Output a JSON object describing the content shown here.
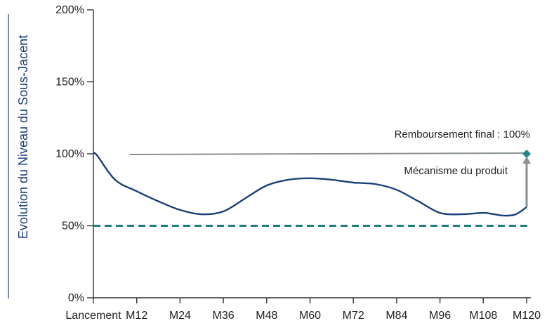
{
  "chart_data": {
    "type": "line",
    "title": "",
    "ylabel": "Evolution du Niveau du Sous-Jacent",
    "xlabel": "",
    "ylim": [
      0,
      200
    ],
    "yticks": [
      0,
      50,
      100,
      150,
      200
    ],
    "ytick_labels": [
      "0%",
      "50%",
      "100%",
      "150%",
      "200%"
    ],
    "xlim": [
      0,
      120
    ],
    "xticks": [
      0,
      12,
      24,
      36,
      48,
      60,
      72,
      84,
      96,
      108,
      120
    ],
    "xtick_labels": [
      "Lancement",
      "M12",
      "M24",
      "M36",
      "M48",
      "M60",
      "M72",
      "M84",
      "M96",
      "M108",
      "M120"
    ],
    "grid": false,
    "series": [
      {
        "x": [
          0,
          1,
          6,
          12,
          18,
          24,
          30,
          36,
          42,
          48,
          54,
          60,
          66,
          72,
          78,
          84,
          90,
          96,
          102,
          108,
          111,
          114,
          117,
          120
        ],
        "y": [
          100,
          99,
          82,
          74,
          67,
          61,
          58,
          60,
          69,
          78,
          82,
          83,
          82,
          80,
          79,
          75,
          67,
          59,
          58,
          59,
          58,
          57,
          58,
          63
        ]
      }
    ],
    "barrier": {
      "value": 50
    },
    "final_level": {
      "x": [
        10,
        120
      ],
      "value": 100
    },
    "final_point": {
      "x": 120,
      "y": 100
    },
    "arrow": {
      "x": 120,
      "from": 63,
      "to": 100
    },
    "annotations": {
      "final": "Remboursement final : 100%",
      "mechanism": "Mécanisme du produit"
    },
    "colors": {
      "line": "#1b3f7a",
      "barrier": "#1f7f80",
      "reference": "#8a9195",
      "arrow": "#8a9195",
      "marker": "#1f8a8a",
      "axis": "#333333",
      "ylabel": "#1b3f7a",
      "ylabel_rule": "#1b3f7a",
      "text": "#222222"
    }
  }
}
